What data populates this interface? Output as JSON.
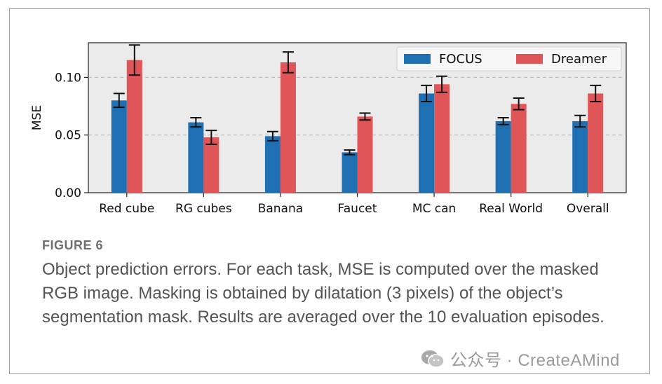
{
  "chart_data": {
    "type": "bar",
    "title": "",
    "xlabel": "",
    "ylabel": "MSE",
    "ylim": [
      0,
      0.13
    ],
    "yticks": [
      0.0,
      0.05,
      0.1
    ],
    "ytick_labels": [
      "0.00",
      "0.05",
      "0.10"
    ],
    "grid": "horizontal dashed at 0.05 and 0.10",
    "legend": "top-right",
    "categories": [
      "Red cube",
      "RG cubes",
      "Banana",
      "Faucet",
      "MC can",
      "Real World",
      "Overall"
    ],
    "series": [
      {
        "name": "FOCUS",
        "color": "#1f6fb3",
        "values": [
          0.08,
          0.061,
          0.049,
          0.035,
          0.086,
          0.062,
          0.062
        ],
        "errors": [
          0.006,
          0.004,
          0.004,
          0.002,
          0.007,
          0.003,
          0.005
        ]
      },
      {
        "name": "Dreamer",
        "color": "#e05558",
        "values": [
          0.115,
          0.048,
          0.113,
          0.066,
          0.094,
          0.077,
          0.086
        ],
        "errors": [
          0.013,
          0.006,
          0.009,
          0.003,
          0.007,
          0.005,
          0.007
        ]
      }
    ]
  },
  "figure": {
    "label": "FIGURE 6",
    "caption": "Object prediction errors. For each task, MSE is computed over the masked RGB image. Masking is obtained by dilatation (3 pixels) of the object’s segmentation mask. Results are averaged over the 10 evaluation episodes."
  },
  "watermark": {
    "text": "公众号 · CreateAMind",
    "icon": "wechat-icon"
  }
}
